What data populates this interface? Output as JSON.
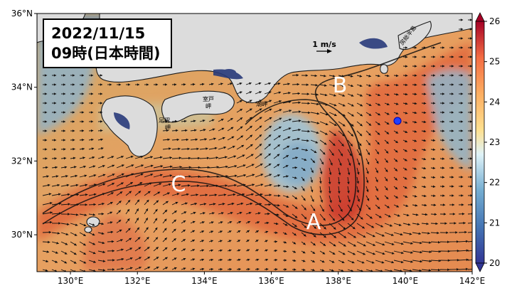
{
  "map": {
    "date_line1": "2022/11/15",
    "date_line2": "09時(日本時間)",
    "scale_label": "1 m/s",
    "region_labels": {
      "A": "A",
      "B": "B",
      "C": "C"
    },
    "place_labels": {
      "muroto": "室戸\n岬",
      "shiono": "潮岬",
      "ashizuri": "足摺\n岬",
      "boso": "房総半島"
    },
    "lon_ticks": [
      "130°E",
      "132°E",
      "134°E",
      "136°E",
      "138°E",
      "140°E",
      "142°E"
    ],
    "lat_ticks": [
      "30°N",
      "32°N",
      "34°N",
      "36°N"
    ],
    "colorbar_ticks": [
      "20",
      "21",
      "22",
      "23",
      "24",
      "25",
      "26"
    ],
    "colorbar_range": [
      20,
      26
    ],
    "colors": {
      "land": "#dcdcdc",
      "cold": "#4575b4",
      "warm": "#d73027",
      "marker": "#1f3fff"
    }
  }
}
